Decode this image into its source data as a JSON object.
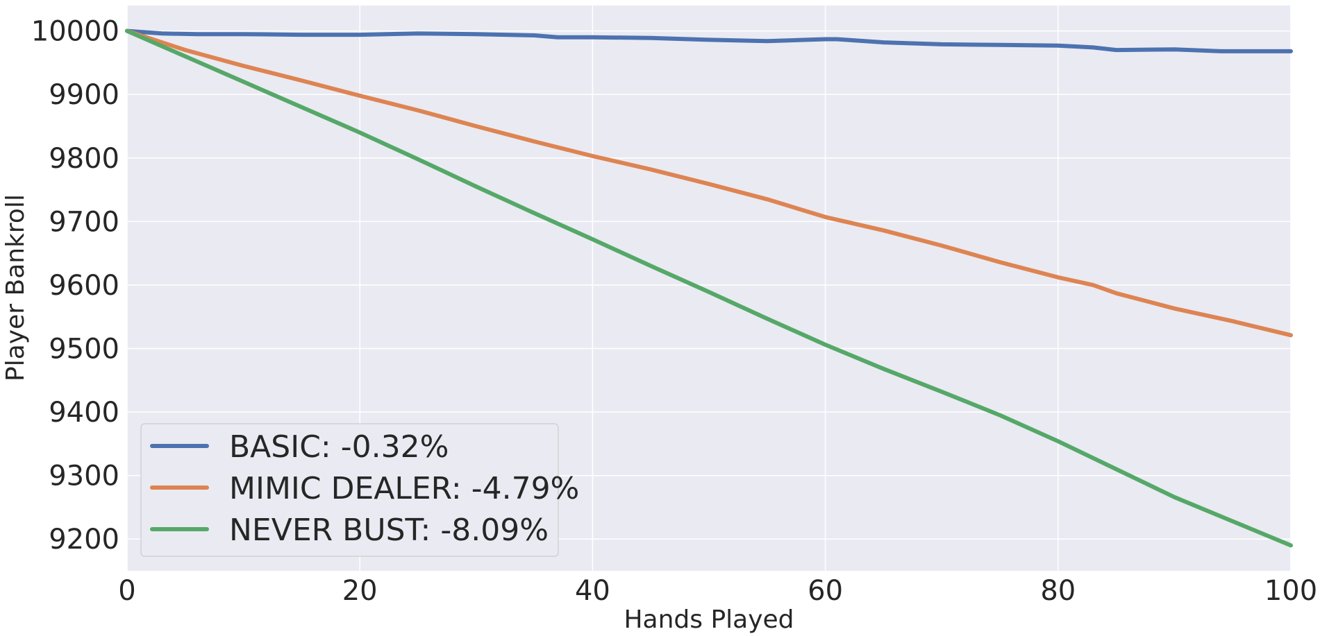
{
  "chart_data": {
    "type": "line",
    "xlabel": "Hands Played",
    "ylabel": "Player Bankroll",
    "xlim": [
      0,
      100
    ],
    "ylim": [
      9150,
      10040
    ],
    "xticks": [
      0,
      20,
      40,
      60,
      80,
      100
    ],
    "yticks": [
      9200,
      9300,
      9400,
      9500,
      9600,
      9700,
      9800,
      9900,
      10000
    ],
    "grid": true,
    "legend_position": "bottom-left",
    "series": [
      {
        "name": "BASIC: -0.32%",
        "color": "#4c72b0",
        "x": [
          0,
          3,
          6,
          10,
          15,
          20,
          25,
          30,
          35,
          37,
          40,
          45,
          50,
          55,
          60,
          61,
          65,
          70,
          75,
          80,
          83,
          85,
          90,
          94,
          98,
          100
        ],
        "y": [
          10000,
          9996,
          9995,
          9995,
          9994,
          9994,
          9996,
          9995,
          9993,
          9990,
          9990,
          9989,
          9986,
          9984,
          9987,
          9987,
          9982,
          9979,
          9978,
          9977,
          9974,
          9970,
          9971,
          9968,
          9968,
          9968
        ]
      },
      {
        "name": "MIMIC DEALER: -4.79%",
        "color": "#dd8452",
        "x": [
          0,
          5,
          10,
          15,
          20,
          25,
          30,
          35,
          40,
          45,
          50,
          55,
          60,
          65,
          70,
          75,
          80,
          83,
          85,
          90,
          95,
          100
        ],
        "y": [
          10000,
          9970,
          9945,
          9922,
          9898,
          9875,
          9850,
          9826,
          9803,
          9782,
          9759,
          9735,
          9707,
          9686,
          9662,
          9636,
          9612,
          9600,
          9587,
          9563,
          9543,
          9521
        ]
      },
      {
        "name": "NEVER BUST: -8.09%",
        "color": "#55a868",
        "x": [
          0,
          5,
          10,
          15,
          20,
          25,
          30,
          35,
          40,
          45,
          50,
          55,
          60,
          65,
          70,
          75,
          80,
          85,
          90,
          95,
          100
        ],
        "y": [
          10000,
          9960,
          9920,
          9880,
          9840,
          9798,
          9755,
          9713,
          9672,
          9630,
          9589,
          9547,
          9506,
          9468,
          9432,
          9395,
          9354,
          9310,
          9266,
          9228,
          9190
        ]
      }
    ]
  }
}
